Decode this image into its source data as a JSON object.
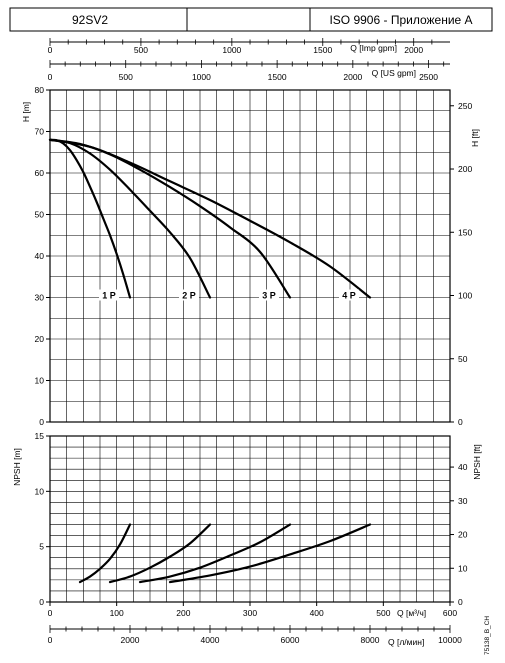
{
  "header": {
    "model": "92SV2",
    "middle": "",
    "standard": "ISO 9906 - Приложение A"
  },
  "top_axes": {
    "imp_label": "Q [Imp gpm]",
    "imp_ticks": [
      "0",
      "500",
      "1000",
      "1500",
      "2000"
    ],
    "us_label": "Q [US gpm]",
    "us_ticks": [
      "0",
      "500",
      "1000",
      "1500",
      "2000",
      "2500"
    ]
  },
  "bottom_axes": {
    "m3h_label": "Q [м³/ч]",
    "lmin_label": "Q [л/мин]"
  },
  "drawing_code": "75138_B_CH",
  "colors": {
    "curve": "#000000",
    "grid": "#000000",
    "background": "#ffffff"
  },
  "chart_data": [
    {
      "type": "line",
      "panel": "head",
      "ylabel_left": "H [m]",
      "ylabel_right": "H [ft]",
      "xlabel": "Q [м³/ч]",
      "xlim": [
        0,
        600
      ],
      "ylim": [
        0,
        80
      ],
      "yticks": [
        0,
        10,
        20,
        30,
        40,
        50,
        60,
        70,
        80
      ],
      "yticks_right": [
        0,
        50,
        100,
        150,
        200,
        250
      ],
      "grid": true,
      "series": [
        {
          "name": "1 P",
          "x": [
            0,
            10,
            20,
            30,
            40,
            50,
            60,
            70,
            80,
            90,
            100,
            110,
            120
          ],
          "y": [
            68,
            67.9,
            67.1,
            65.5,
            63.1,
            60.2,
            56.7,
            53.0,
            49.0,
            45.0,
            40.5,
            35.5,
            30
          ]
        },
        {
          "name": "2 P",
          "x": [
            0,
            30,
            60,
            90,
            120,
            150,
            180,
            210,
            240
          ],
          "y": [
            68,
            67.2,
            64.7,
            60.8,
            56.0,
            50.9,
            45.7,
            39.5,
            30
          ]
        },
        {
          "name": "3 P",
          "x": [
            0,
            45,
            90,
            135,
            180,
            225,
            270,
            315,
            360
          ],
          "y": [
            68,
            67.0,
            64.5,
            60.8,
            56.6,
            52.0,
            46.9,
            41.0,
            30
          ]
        },
        {
          "name": "4 P",
          "x": [
            0,
            60,
            120,
            180,
            240,
            300,
            360,
            420,
            480
          ],
          "y": [
            68,
            66.3,
            62.5,
            58.0,
            53.5,
            48.5,
            43.3,
            37.5,
            30
          ]
        }
      ]
    },
    {
      "type": "line",
      "panel": "npsh",
      "ylabel_left": "NPSH [m]",
      "ylabel_right": "NPSH [ft]",
      "xlabel": "Q [м³/ч]",
      "xlabel2": "Q [л/мин]",
      "xlim": [
        0,
        600
      ],
      "ylim": [
        0,
        15
      ],
      "yticks": [
        0,
        5,
        10,
        15
      ],
      "yticks_right": [
        0,
        10,
        20,
        30,
        40
      ],
      "xticks": [
        0,
        100,
        200,
        300,
        400,
        500,
        600
      ],
      "xticks2": [
        0,
        2000,
        4000,
        6000,
        8000,
        10000
      ],
      "grid": true,
      "series": [
        {
          "x": [
            45,
            60,
            75,
            90,
            105,
            120
          ],
          "y": [
            1.8,
            2.3,
            3.0,
            3.9,
            5.2,
            7.0
          ]
        },
        {
          "x": [
            90,
            120,
            150,
            180,
            210,
            240
          ],
          "y": [
            1.8,
            2.3,
            3.1,
            4.1,
            5.3,
            7.0
          ]
        },
        {
          "x": [
            135,
            180,
            225,
            270,
            315,
            360
          ],
          "y": [
            1.8,
            2.3,
            3.1,
            4.2,
            5.4,
            7.0
          ]
        },
        {
          "x": [
            180,
            240,
            300,
            360,
            420,
            480
          ],
          "y": [
            1.8,
            2.4,
            3.2,
            4.3,
            5.5,
            7.0
          ]
        }
      ]
    }
  ]
}
